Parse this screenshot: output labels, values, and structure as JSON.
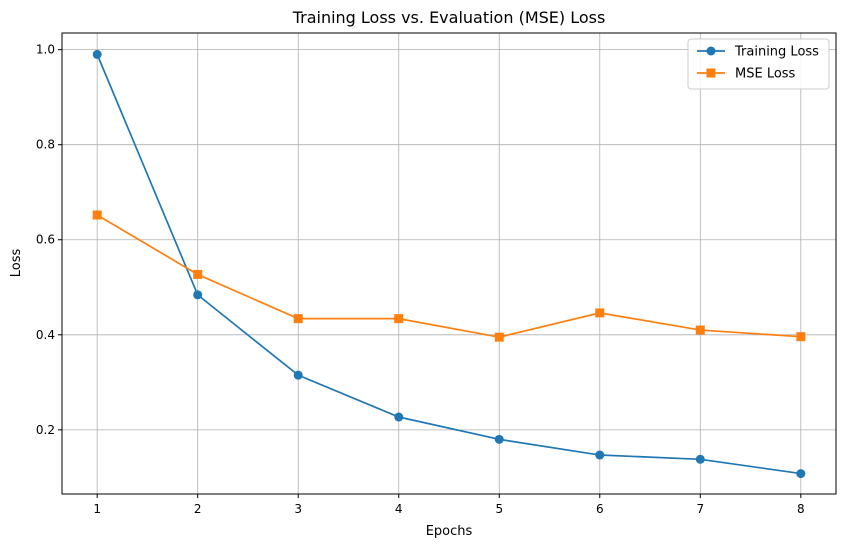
{
  "chart_data": {
    "type": "line",
    "title": "Training Loss vs. Evaluation (MSE) Loss",
    "xlabel": "Epochs",
    "ylabel": "Loss",
    "x": [
      1,
      2,
      3,
      4,
      5,
      6,
      7,
      8
    ],
    "xticks": [
      "1",
      "2",
      "3",
      "4",
      "5",
      "6",
      "7",
      "8"
    ],
    "yticks": [
      "0.2",
      "0.4",
      "0.6",
      "0.8",
      "1.0"
    ],
    "xlim": [
      0.65,
      8.35
    ],
    "ylim": [
      0.065,
      1.035
    ],
    "grid": true,
    "legend_position": "top-right",
    "series": [
      {
        "name": "Training Loss",
        "values": [
          0.99,
          0.484,
          0.315,
          0.227,
          0.18,
          0.147,
          0.138,
          0.108
        ],
        "color": "#1f77b4",
        "marker": "circle"
      },
      {
        "name": "MSE Loss",
        "values": [
          0.652,
          0.527,
          0.434,
          0.434,
          0.395,
          0.446,
          0.41,
          0.396
        ],
        "color": "#ff7f0e",
        "marker": "square"
      }
    ]
  }
}
